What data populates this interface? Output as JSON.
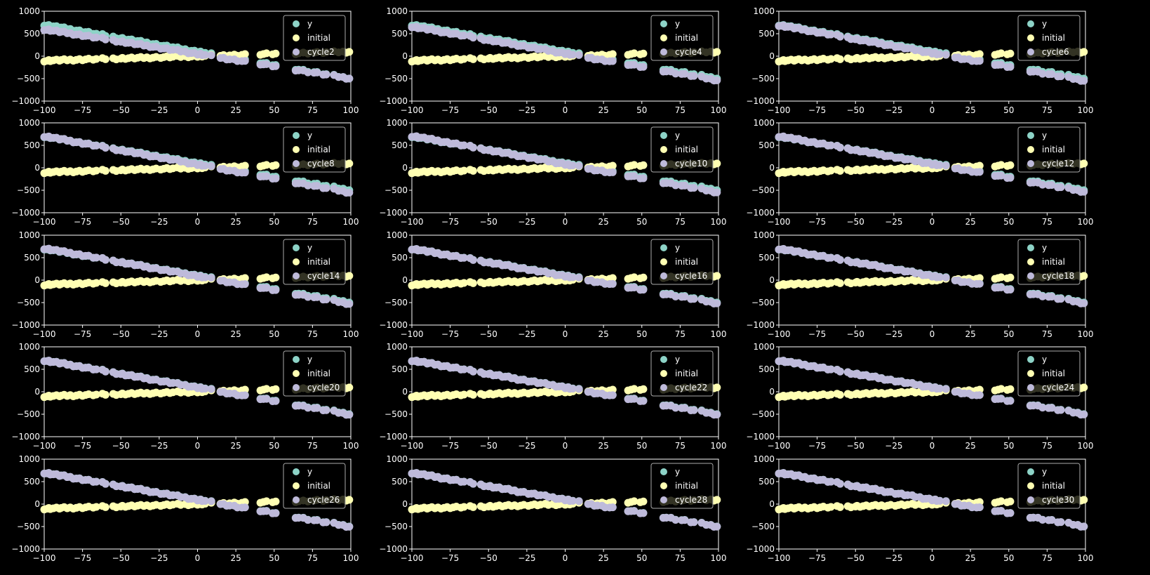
{
  "figure": {
    "background": "#000000",
    "foreground": "#ffffff",
    "layout": "5 rows x 3 columns grid of scatter subplots"
  },
  "colors": {
    "y": "#8dd3c7",
    "initial": "#ffffb3",
    "cycle": "#bebada",
    "legend_bg": "#000000",
    "legend_edge": "#aaaaaa"
  },
  "chart_data": [
    {
      "type": "scatter",
      "xlim": [
        -100,
        100
      ],
      "ylim": [
        -1000,
        1000
      ],
      "x_ticks": [
        -100,
        -75,
        -50,
        -25,
        0,
        25,
        50,
        75,
        100
      ],
      "y_ticks": [
        -1000,
        -500,
        0,
        500,
        1000
      ],
      "legend": [
        "y",
        "initial",
        "cycle2"
      ],
      "legend_position": "upper-right",
      "series": [
        {
          "name": "y",
          "fit": {
            "slope": -6.0,
            "intercept": 100
          }
        },
        {
          "name": "initial",
          "fit": {
            "slope": 1.0,
            "intercept": 0
          }
        },
        {
          "name": "cycle2",
          "fit": {
            "slope": -5.5,
            "intercept": 50
          }
        }
      ]
    },
    {
      "type": "scatter",
      "xlim": [
        -100,
        100
      ],
      "ylim": [
        -1000,
        1000
      ],
      "x_ticks": [
        -100,
        -75,
        -50,
        -25,
        0,
        25,
        50,
        75,
        100
      ],
      "y_ticks": [
        -1000,
        -500,
        0,
        500,
        1000
      ],
      "legend": [
        "y",
        "initial",
        "cycle4"
      ],
      "legend_position": "upper-right",
      "series": [
        {
          "name": "y",
          "fit": {
            "slope": -6.0,
            "intercept": 100
          }
        },
        {
          "name": "initial",
          "fit": {
            "slope": 1.0,
            "intercept": 0
          }
        },
        {
          "name": "cycle4",
          "fit": {
            "slope": -6.0,
            "intercept": 60
          }
        }
      ]
    },
    {
      "type": "scatter",
      "xlim": [
        -100,
        100
      ],
      "ylim": [
        -1000,
        1000
      ],
      "x_ticks": [
        -100,
        -75,
        -50,
        -25,
        0,
        25,
        50,
        75,
        100
      ],
      "y_ticks": [
        -1000,
        -500,
        0,
        500,
        1000
      ],
      "legend": [
        "y",
        "initial",
        "cycle6"
      ],
      "legend_position": "upper-right",
      "series": [
        {
          "name": "y",
          "fit": {
            "slope": -6.0,
            "intercept": 100
          }
        },
        {
          "name": "initial",
          "fit": {
            "slope": 1.0,
            "intercept": 0
          }
        },
        {
          "name": "cycle6",
          "fit": {
            "slope": -6.2,
            "intercept": 70
          }
        }
      ]
    },
    {
      "type": "scatter",
      "xlim": [
        -100,
        100
      ],
      "ylim": [
        -1000,
        1000
      ],
      "x_ticks": [
        -100,
        -75,
        -50,
        -25,
        0,
        25,
        50,
        75,
        100
      ],
      "y_ticks": [
        -1000,
        -500,
        0,
        500,
        1000
      ],
      "legend": [
        "y",
        "initial",
        "cycle8"
      ],
      "legend_position": "upper-right",
      "series": [
        {
          "name": "y",
          "fit": {
            "slope": -6.0,
            "intercept": 100
          }
        },
        {
          "name": "initial",
          "fit": {
            "slope": 1.0,
            "intercept": 0
          }
        },
        {
          "name": "cycle8",
          "fit": {
            "slope": -6.3,
            "intercept": 75
          }
        }
      ]
    },
    {
      "type": "scatter",
      "xlim": [
        -100,
        100
      ],
      "ylim": [
        -1000,
        1000
      ],
      "x_ticks": [
        -100,
        -75,
        -50,
        -25,
        0,
        25,
        50,
        75,
        100
      ],
      "y_ticks": [
        -1000,
        -500,
        0,
        500,
        1000
      ],
      "legend": [
        "y",
        "initial",
        "cycle10"
      ],
      "legend_position": "upper-right",
      "series": [
        {
          "name": "y",
          "fit": {
            "slope": -6.0,
            "intercept": 100
          }
        },
        {
          "name": "initial",
          "fit": {
            "slope": 1.0,
            "intercept": 0
          }
        },
        {
          "name": "cycle10",
          "fit": {
            "slope": -6.3,
            "intercept": 80
          }
        }
      ]
    },
    {
      "type": "scatter",
      "xlim": [
        -100,
        100
      ],
      "ylim": [
        -1000,
        1000
      ],
      "x_ticks": [
        -100,
        -75,
        -50,
        -25,
        0,
        25,
        50,
        75,
        100
      ],
      "y_ticks": [
        -1000,
        -500,
        0,
        500,
        1000
      ],
      "legend": [
        "y",
        "initial",
        "cycle12"
      ],
      "legend_position": "upper-right",
      "series": [
        {
          "name": "y",
          "fit": {
            "slope": -6.0,
            "intercept": 100
          }
        },
        {
          "name": "initial",
          "fit": {
            "slope": 1.0,
            "intercept": 0
          }
        },
        {
          "name": "cycle12",
          "fit": {
            "slope": -6.2,
            "intercept": 85
          }
        }
      ]
    },
    {
      "type": "scatter",
      "xlim": [
        -100,
        100
      ],
      "ylim": [
        -1000,
        1000
      ],
      "x_ticks": [
        -100,
        -75,
        -50,
        -25,
        0,
        25,
        50,
        75,
        100
      ],
      "y_ticks": [
        -1000,
        -500,
        0,
        500,
        1000
      ],
      "legend": [
        "y",
        "initial",
        "cycle14"
      ],
      "legend_position": "upper-right",
      "series": [
        {
          "name": "y",
          "fit": {
            "slope": -6.0,
            "intercept": 100
          }
        },
        {
          "name": "initial",
          "fit": {
            "slope": 1.0,
            "intercept": 0
          }
        },
        {
          "name": "cycle14",
          "fit": {
            "slope": -6.2,
            "intercept": 88
          }
        }
      ]
    },
    {
      "type": "scatter",
      "xlim": [
        -100,
        100
      ],
      "ylim": [
        -1000,
        1000
      ],
      "x_ticks": [
        -100,
        -75,
        -50,
        -25,
        0,
        25,
        50,
        75,
        100
      ],
      "y_ticks": [
        -1000,
        -500,
        0,
        500,
        1000
      ],
      "legend": [
        "y",
        "initial",
        "cycle16"
      ],
      "legend_position": "upper-right",
      "series": [
        {
          "name": "y",
          "fit": {
            "slope": -6.0,
            "intercept": 100
          }
        },
        {
          "name": "initial",
          "fit": {
            "slope": 1.0,
            "intercept": 0
          }
        },
        {
          "name": "cycle16",
          "fit": {
            "slope": -6.1,
            "intercept": 90
          }
        }
      ]
    },
    {
      "type": "scatter",
      "xlim": [
        -100,
        100
      ],
      "ylim": [
        -1000,
        1000
      ],
      "x_ticks": [
        -100,
        -75,
        -50,
        -25,
        0,
        25,
        50,
        75,
        100
      ],
      "y_ticks": [
        -1000,
        -500,
        0,
        500,
        1000
      ],
      "legend": [
        "y",
        "initial",
        "cycle18"
      ],
      "legend_position": "upper-right",
      "series": [
        {
          "name": "y",
          "fit": {
            "slope": -6.0,
            "intercept": 100
          }
        },
        {
          "name": "initial",
          "fit": {
            "slope": 1.0,
            "intercept": 0
          }
        },
        {
          "name": "cycle18",
          "fit": {
            "slope": -6.1,
            "intercept": 92
          }
        }
      ]
    },
    {
      "type": "scatter",
      "xlim": [
        -100,
        100
      ],
      "ylim": [
        -1000,
        1000
      ],
      "x_ticks": [
        -100,
        -75,
        -50,
        -25,
        0,
        25,
        50,
        75,
        100
      ],
      "y_ticks": [
        -1000,
        -500,
        0,
        500,
        1000
      ],
      "legend": [
        "y",
        "initial",
        "cycle20"
      ],
      "legend_position": "upper-right",
      "series": [
        {
          "name": "y",
          "fit": {
            "slope": -6.0,
            "intercept": 100
          }
        },
        {
          "name": "initial",
          "fit": {
            "slope": 1.0,
            "intercept": 0
          }
        },
        {
          "name": "cycle20",
          "fit": {
            "slope": -6.05,
            "intercept": 94
          }
        }
      ]
    },
    {
      "type": "scatter",
      "xlim": [
        -100,
        100
      ],
      "ylim": [
        -1000,
        1000
      ],
      "x_ticks": [
        -100,
        -75,
        -50,
        -25,
        0,
        25,
        50,
        75,
        100
      ],
      "y_ticks": [
        -1000,
        -500,
        0,
        500,
        1000
      ],
      "legend": [
        "y",
        "initial",
        "cycle22"
      ],
      "legend_position": "upper-right",
      "series": [
        {
          "name": "y",
          "fit": {
            "slope": -6.0,
            "intercept": 100
          }
        },
        {
          "name": "initial",
          "fit": {
            "slope": 1.0,
            "intercept": 0
          }
        },
        {
          "name": "cycle22",
          "fit": {
            "slope": -6.05,
            "intercept": 95
          }
        }
      ]
    },
    {
      "type": "scatter",
      "xlim": [
        -100,
        100
      ],
      "ylim": [
        -1000,
        1000
      ],
      "x_ticks": [
        -100,
        -75,
        -50,
        -25,
        0,
        25,
        50,
        75,
        100
      ],
      "y_ticks": [
        -1000,
        -500,
        0,
        500,
        1000
      ],
      "legend": [
        "y",
        "initial",
        "cycle24"
      ],
      "legend_position": "upper-right",
      "series": [
        {
          "name": "y",
          "fit": {
            "slope": -6.0,
            "intercept": 100
          }
        },
        {
          "name": "initial",
          "fit": {
            "slope": 1.0,
            "intercept": 0
          }
        },
        {
          "name": "cycle24",
          "fit": {
            "slope": -6.03,
            "intercept": 96
          }
        }
      ]
    },
    {
      "type": "scatter",
      "xlim": [
        -100,
        100
      ],
      "ylim": [
        -1000,
        1000
      ],
      "x_ticks": [
        -100,
        -75,
        -50,
        -25,
        0,
        25,
        50,
        75,
        100
      ],
      "y_ticks": [
        -1000,
        -500,
        0,
        500,
        1000
      ],
      "legend": [
        "y",
        "initial",
        "cycle26"
      ],
      "legend_position": "upper-right",
      "series": [
        {
          "name": "y",
          "fit": {
            "slope": -6.0,
            "intercept": 100
          }
        },
        {
          "name": "initial",
          "fit": {
            "slope": 1.0,
            "intercept": 0
          }
        },
        {
          "name": "cycle26",
          "fit": {
            "slope": -6.02,
            "intercept": 97
          }
        }
      ]
    },
    {
      "type": "scatter",
      "xlim": [
        -100,
        100
      ],
      "ylim": [
        -1000,
        1000
      ],
      "x_ticks": [
        -100,
        -75,
        -50,
        -25,
        0,
        25,
        50,
        75,
        100
      ],
      "y_ticks": [
        -1000,
        -500,
        0,
        500,
        1000
      ],
      "legend": [
        "y",
        "initial",
        "cycle28"
      ],
      "legend_position": "upper-right",
      "series": [
        {
          "name": "y",
          "fit": {
            "slope": -6.0,
            "intercept": 100
          }
        },
        {
          "name": "initial",
          "fit": {
            "slope": 1.0,
            "intercept": 0
          }
        },
        {
          "name": "cycle28",
          "fit": {
            "slope": -6.01,
            "intercept": 98
          }
        }
      ]
    },
    {
      "type": "scatter",
      "xlim": [
        -100,
        100
      ],
      "ylim": [
        -1000,
        1000
      ],
      "x_ticks": [
        -100,
        -75,
        -50,
        -25,
        0,
        25,
        50,
        75,
        100
      ],
      "y_ticks": [
        -1000,
        -500,
        0,
        500,
        1000
      ],
      "legend": [
        "y",
        "initial",
        "cycle30"
      ],
      "legend_position": "upper-right",
      "series": [
        {
          "name": "y",
          "fit": {
            "slope": -6.0,
            "intercept": 100
          }
        },
        {
          "name": "initial",
          "fit": {
            "slope": 1.0,
            "intercept": 0
          }
        },
        {
          "name": "cycle30",
          "fit": {
            "slope": -6.0,
            "intercept": 99
          }
        }
      ]
    }
  ],
  "sample_x": [
    -100,
    -98,
    -97,
    -96,
    -94,
    -92,
    -90,
    -89,
    -87,
    -85,
    -83,
    -81,
    -79,
    -77,
    -75,
    -73,
    -71,
    -68,
    -66,
    -62,
    -60,
    -55,
    -53,
    -50,
    -49,
    -47,
    -45,
    -43,
    -41,
    -39,
    -37,
    -35,
    -33,
    -31,
    -29,
    -27,
    -24,
    -22,
    -20,
    -18,
    -16,
    -13,
    -11,
    -8,
    -6,
    -4,
    -2,
    0,
    1,
    2,
    3,
    5,
    9,
    15,
    17,
    19,
    21,
    24,
    26,
    29,
    31,
    41,
    43,
    45,
    49,
    51,
    64,
    66,
    69,
    72,
    76,
    78,
    82,
    84,
    89,
    92,
    95,
    97,
    99
  ]
}
